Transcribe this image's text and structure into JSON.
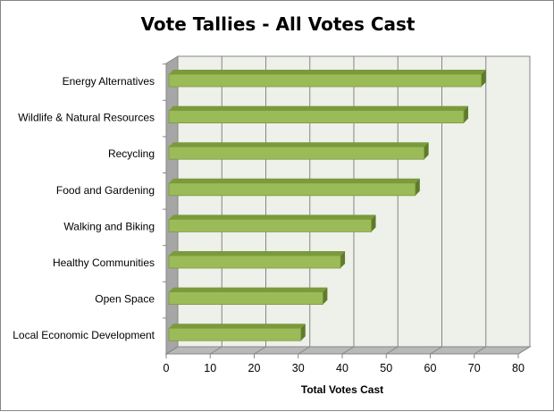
{
  "chart_data": {
    "type": "bar",
    "orientation": "horizontal",
    "style": "3d-clustered",
    "title": "Vote Tallies - All Votes Cast",
    "xlabel": "Total Votes Cast",
    "ylabel": "",
    "categories": [
      "Energy Alternatives",
      "Wildlife & Natural Resources",
      "Recycling",
      "Food and Gardening",
      "Walking and Biking",
      "Healthy Communities",
      "Open Space",
      "Local Economic Development"
    ],
    "values": [
      71,
      67,
      58,
      56,
      46,
      39,
      35,
      30
    ],
    "xlim": [
      0,
      80
    ],
    "xticks": [
      "0",
      "10",
      "20",
      "30",
      "40",
      "50",
      "60",
      "70",
      "80"
    ],
    "grid": true,
    "legend": "none",
    "colors": {
      "bar_front": "#9bbb59",
      "bar_top": "#7a9a3c",
      "bar_side": "#5f7b2a",
      "wall": "#eef0ea",
      "side_wall": "#a6a6a6",
      "grid": "#868686"
    }
  }
}
